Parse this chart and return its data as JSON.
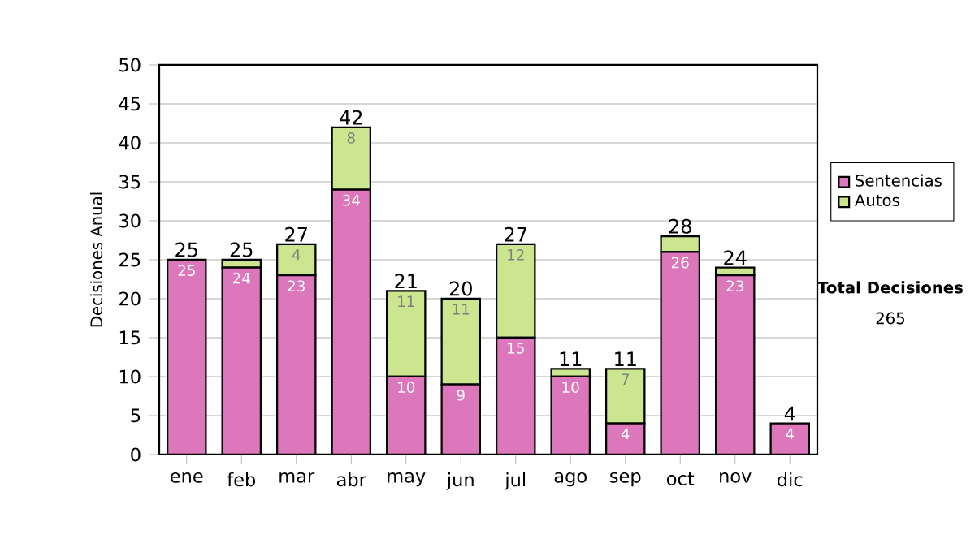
{
  "chart_data": {
    "type": "bar",
    "stacked": true,
    "ylabel": "Decisiones Anual",
    "categories": [
      "ene",
      "feb",
      "mar",
      "abr",
      "may",
      "jun",
      "jul",
      "ago",
      "sep",
      "oct",
      "nov",
      "dic"
    ],
    "series": [
      {
        "name": "Sentencias",
        "color": "#dd77bb",
        "values": [
          25,
          24,
          23,
          34,
          10,
          9,
          15,
          10,
          4,
          26,
          23,
          4
        ],
        "value_labels": [
          "25",
          "24",
          "23",
          "34",
          "10",
          "9",
          "15",
          "10",
          "4",
          "26",
          "23",
          "4"
        ]
      },
      {
        "name": "Autos",
        "color": "#cce58f",
        "values": [
          0,
          1,
          4,
          8,
          11,
          11,
          12,
          1,
          7,
          2,
          1,
          0
        ],
        "value_labels": [
          null,
          null,
          "4",
          "8",
          "11",
          "11",
          "12",
          null,
          "7",
          null,
          null,
          null
        ]
      }
    ],
    "totals": [
      "25",
      "25",
      "27",
      "42",
      "21",
      "20",
      "27",
      "11",
      "11",
      "28",
      "24",
      "4"
    ],
    "ylim": [
      0,
      50
    ],
    "yticks": [
      0,
      5,
      10,
      15,
      20,
      25,
      30,
      35,
      40,
      45,
      50
    ],
    "grid": "y",
    "legend": "right",
    "annotations": [
      "Total Decisiones",
      "265"
    ]
  }
}
